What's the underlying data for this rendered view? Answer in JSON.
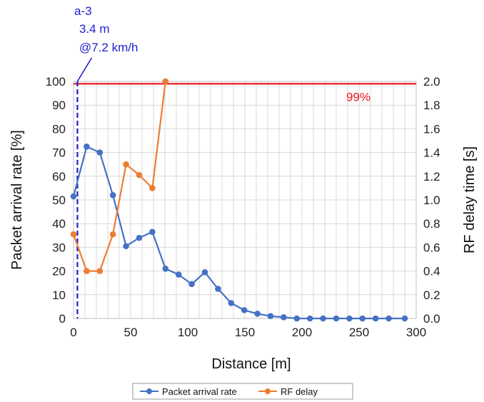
{
  "chart_data": {
    "type": "line",
    "xlabel": "Distance [m]",
    "ylabel_left": "Packet arrival rate [%]",
    "ylabel_right": "RF delay time [s]",
    "xlim": [
      0,
      300
    ],
    "ylim_left": [
      0,
      100
    ],
    "ylim_right": [
      0,
      2.0
    ],
    "xticks": [
      "0",
      "50",
      "100",
      "150",
      "200",
      "250",
      "300"
    ],
    "yticks_left": [
      "0",
      "10",
      "20",
      "30",
      "40",
      "50",
      "60",
      "70",
      "80",
      "90",
      "100"
    ],
    "yticks_right": [
      "0.0",
      "0.2",
      "0.4",
      "0.6",
      "0.8",
      "1.0",
      "1.2",
      "1.4",
      "1.6",
      "1.8",
      "2.0"
    ],
    "grid": true,
    "legend_position": "bottom",
    "series": [
      {
        "name": "Packet arrival rate",
        "axis": "left",
        "color": "#4472c4",
        "x": [
          0,
          11.5,
          23,
          34.5,
          46,
          57.5,
          69,
          80.5,
          92,
          103.5,
          115,
          126.5,
          138,
          149.5,
          161,
          172.5,
          184,
          195.5,
          207,
          218.5,
          230,
          241.5,
          253,
          264.5,
          276,
          290
        ],
        "y": [
          51.5,
          72.5,
          70,
          52,
          30.5,
          34,
          36.5,
          21,
          18.5,
          14.5,
          19.5,
          12.5,
          6.5,
          3.5,
          2,
          1,
          0.5,
          0,
          0,
          0,
          0,
          0,
          0,
          0,
          0,
          0
        ]
      },
      {
        "name": "RF delay",
        "axis": "right",
        "color": "#ed7d31",
        "x": [
          0,
          11.5,
          23,
          34.5,
          46,
          57.5,
          69,
          80.5
        ],
        "y": [
          0.71,
          0.4,
          0.4,
          0.71,
          1.3,
          1.21,
          1.1,
          2.0
        ]
      }
    ],
    "reference_line": {
      "axis": "left",
      "y": 99,
      "label": "99%",
      "color": "#e8141c"
    },
    "marker_line": {
      "x": 3.4,
      "color": "#1f1fcf",
      "label_lines": [
        "a-3",
        "3.4 m",
        "@7.2 km/h"
      ]
    }
  }
}
